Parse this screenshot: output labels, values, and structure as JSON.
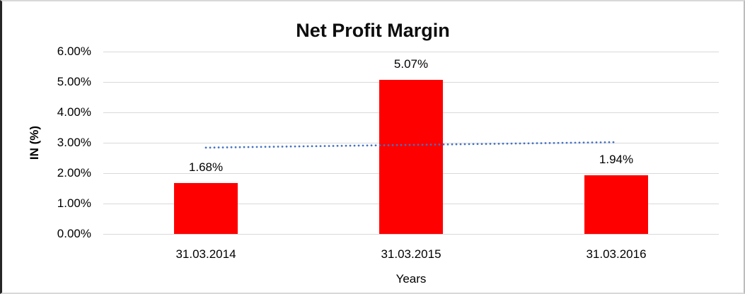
{
  "chart_data": {
    "type": "bar",
    "title": "Net Profit Margin",
    "xlabel": "Years",
    "ylabel": "IN (%)",
    "categories": [
      "31.03.2014",
      "31.03.2015",
      "31.03.2016"
    ],
    "values": [
      1.68,
      5.07,
      1.94
    ],
    "data_labels": [
      "1.68%",
      "5.07%",
      "1.94%"
    ],
    "y_ticks": [
      "0.00%",
      "1.00%",
      "2.00%",
      "3.00%",
      "4.00%",
      "5.00%",
      "6.00%"
    ],
    "ylim": [
      0,
      6
    ],
    "grid": "horizontal",
    "legend": "none",
    "bar_color": "#ff0000",
    "gridline_color": "#d9d9d9",
    "text_color": "#000000",
    "trendline": {
      "style": "dotted",
      "color": "#4472c4",
      "start_value": 2.84,
      "end_value": 3.02
    }
  }
}
